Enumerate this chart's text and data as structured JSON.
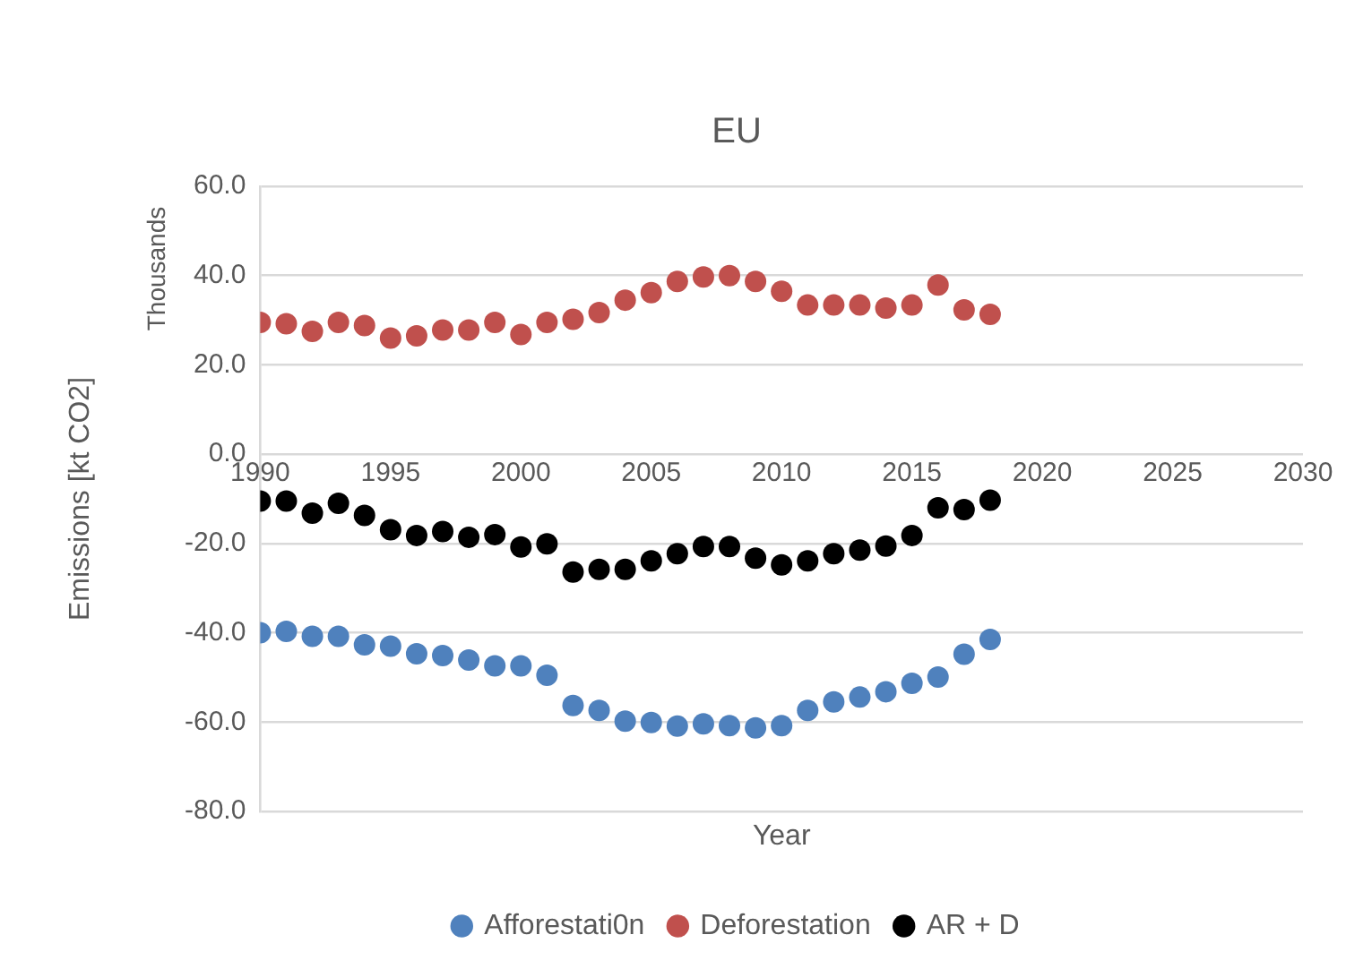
{
  "chart_data": {
    "type": "scatter",
    "title": "EU",
    "xlabel": "Year",
    "ylabel": "Emissions [kt CO2]",
    "annotations": [
      "Thousands"
    ],
    "x": [
      1990,
      1991,
      1992,
      1993,
      1994,
      1995,
      1996,
      1997,
      1998,
      1999,
      2000,
      2001,
      2002,
      2003,
      2004,
      2005,
      2006,
      2007,
      2008,
      2009,
      2010,
      2011,
      2012,
      2013,
      2014,
      2015,
      2016,
      2017,
      2018
    ],
    "series": [
      {
        "name": "Afforestati0n",
        "color": "#4f81bd",
        "values": [
          -40,
          -39.7,
          -40.8,
          -40.8,
          -42.7,
          -43,
          -44.7,
          -45.1,
          -46.1,
          -47.4,
          -47.4,
          -49.5,
          -56.3,
          -57.4,
          -59.8,
          -60.1,
          -60.9,
          -60.4,
          -60.8,
          -61.3,
          -60.8,
          -57.4,
          -55.5,
          -54.4,
          -53.2,
          -51.3,
          -49.9,
          -44.8,
          -41.5
        ]
      },
      {
        "name": "Deforestation",
        "color": "#c0504d",
        "values": [
          29.5,
          29.2,
          27.5,
          29.5,
          28.8,
          26,
          26.5,
          27.8,
          27.8,
          29.5,
          26.8,
          29.5,
          30.2,
          31.7,
          34.5,
          36.2,
          38.7,
          39.7,
          40,
          38.7,
          36.5,
          33.4,
          33.4,
          33.4,
          32.7,
          33.4,
          37.9,
          32.3,
          31.3
        ]
      },
      {
        "name": "AR + D",
        "color": "#000000",
        "values": [
          -10.5,
          -10.5,
          -13.2,
          -11,
          -13.7,
          -16.9,
          -18.2,
          -17.3,
          -18.6,
          -18,
          -20.8,
          -20.1,
          -26.4,
          -25.8,
          -25.8,
          -23.9,
          -22.3,
          -20.7,
          -20.7,
          -23.3,
          -24.8,
          -23.9,
          -22.3,
          -21.5,
          -20.6,
          -18.2,
          -12,
          -12.4,
          -10.3
        ]
      }
    ],
    "xlim": [
      1990,
      2030
    ],
    "xticks": [
      1990,
      1995,
      2000,
      2005,
      2010,
      2015,
      2020,
      2025,
      2030
    ],
    "ylim": [
      -80,
      60
    ],
    "yticks": [
      {
        "value": -80,
        "label": "-80.0"
      },
      {
        "value": -60,
        "label": "-60.0"
      },
      {
        "value": -40,
        "label": "-40.0"
      },
      {
        "value": -20,
        "label": "-20.0"
      },
      {
        "value": 0,
        "label": "0.0"
      },
      {
        "value": 20,
        "label": "20.0"
      },
      {
        "value": 40,
        "label": "40.0"
      },
      {
        "value": 60,
        "label": "60.0"
      }
    ],
    "grid": "y",
    "legend": "bottom",
    "marker": "circle"
  }
}
